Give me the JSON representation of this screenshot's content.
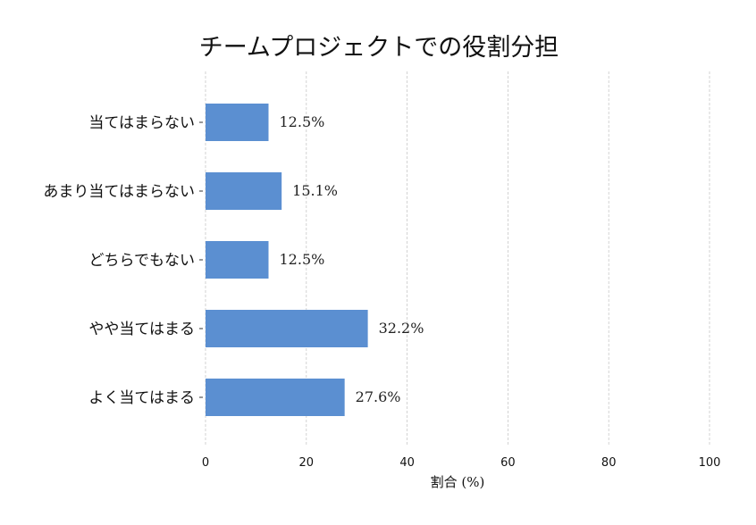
{
  "chart_data": {
    "type": "bar",
    "orientation": "horizontal",
    "title": "チームプロジェクトでの役割分担",
    "xlabel": "割合 (%)",
    "ylabel": "",
    "xlim": [
      0,
      100
    ],
    "xticks": [
      "0",
      "20",
      "40",
      "60",
      "80",
      "100"
    ],
    "grid": true,
    "bar_color": "#5b8fd1",
    "categories": [
      "当てはまらない",
      "あまり当てはまらない",
      "どちらでもない",
      "やや当てはまる",
      "よく当てはまる"
    ],
    "values": [
      12.5,
      15.1,
      12.5,
      32.2,
      27.6
    ],
    "data_labels": [
      "12.5%",
      "15.1%",
      "12.5%",
      "32.2%",
      "27.6%"
    ]
  }
}
